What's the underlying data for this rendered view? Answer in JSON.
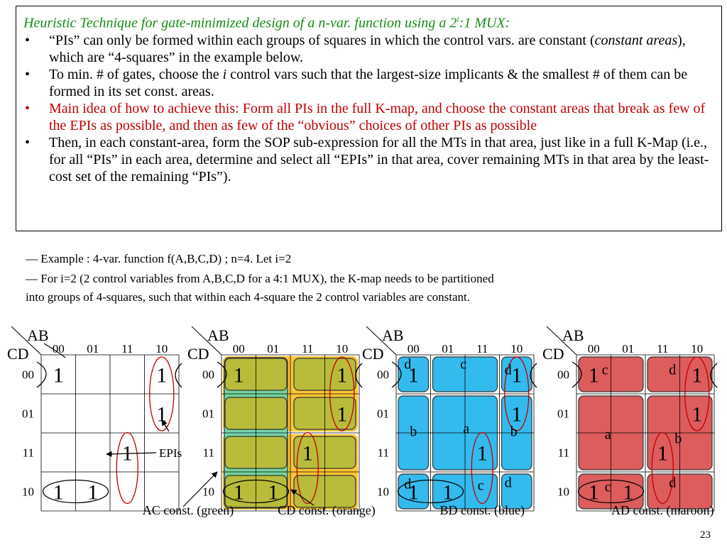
{
  "heading": {
    "prefix": "Heuristic Technique for gate-minimized design of a n-var. function using a 2",
    "sup": "i",
    "suffix": ":1 MUX:"
  },
  "bullets": [
    {
      "a": "“PIs” can only be formed within each groups of squares in which the control vars. are constant (",
      "em": "constant areas",
      "b": "), which are “4-squares” in the example below."
    },
    {
      "a": "To min. # of gates, choose the ",
      "em": "i",
      "b": " control vars such that the largest-size implicants & the smallest # of them can be formed in its set const. areas."
    },
    {
      "a": "Main idea of how to achieve this: Form all PIs in the full K-map, and choose the constant areas that break as few of the EPIs as possible, and then as few of the “obvious” choices of other PIs as possible",
      "em": "",
      "b": ""
    },
    {
      "a": "Then, in each constant-area, form the SOP sub-expression for all the MTs in that area, just like in a full K-Map (i.e., for all “PIs” in each area, determine and select all “EPIs” in that area, cover remaining MTs in that area by the least-cost set of the remaining “PIs”).",
      "em": "",
      "b": ""
    }
  ],
  "bullet_char": "•",
  "example": {
    "line1": "—  Example :   4-var. function f(A,B,C,D) ; n=4.  Let i=2",
    "line2": "— For i=2 (2 control variables from A,B,C,D for a 4:1 MUX),  the K-map needs to be partitioned",
    "line3": "into groups of 4-squares,  such that within each 4-square the 2 control variables are constant."
  },
  "kmap": {
    "ab": "AB",
    "cd": "CD",
    "cols": [
      "00",
      "01",
      "11",
      "10"
    ],
    "rows": [
      "00",
      "01",
      "11",
      "10"
    ],
    "one": "1"
  },
  "epis_label": "EPIs",
  "area_labels": {
    "a": "a",
    "b": "b",
    "c": "c",
    "d": "d"
  },
  "captions": [
    "AC const. (green)",
    "CD const. (orange)",
    "BD const. (blue)",
    "AD const. (maroon)"
  ],
  "colors": {
    "green": "#5cd6b0",
    "orange": "#ffc533",
    "blue": "#33bbee",
    "maroon": "#dd5c5c",
    "olive": "#b8bc3a",
    "red": "#c00000",
    "title_green": "#1a8a1a"
  },
  "page_number": "23"
}
